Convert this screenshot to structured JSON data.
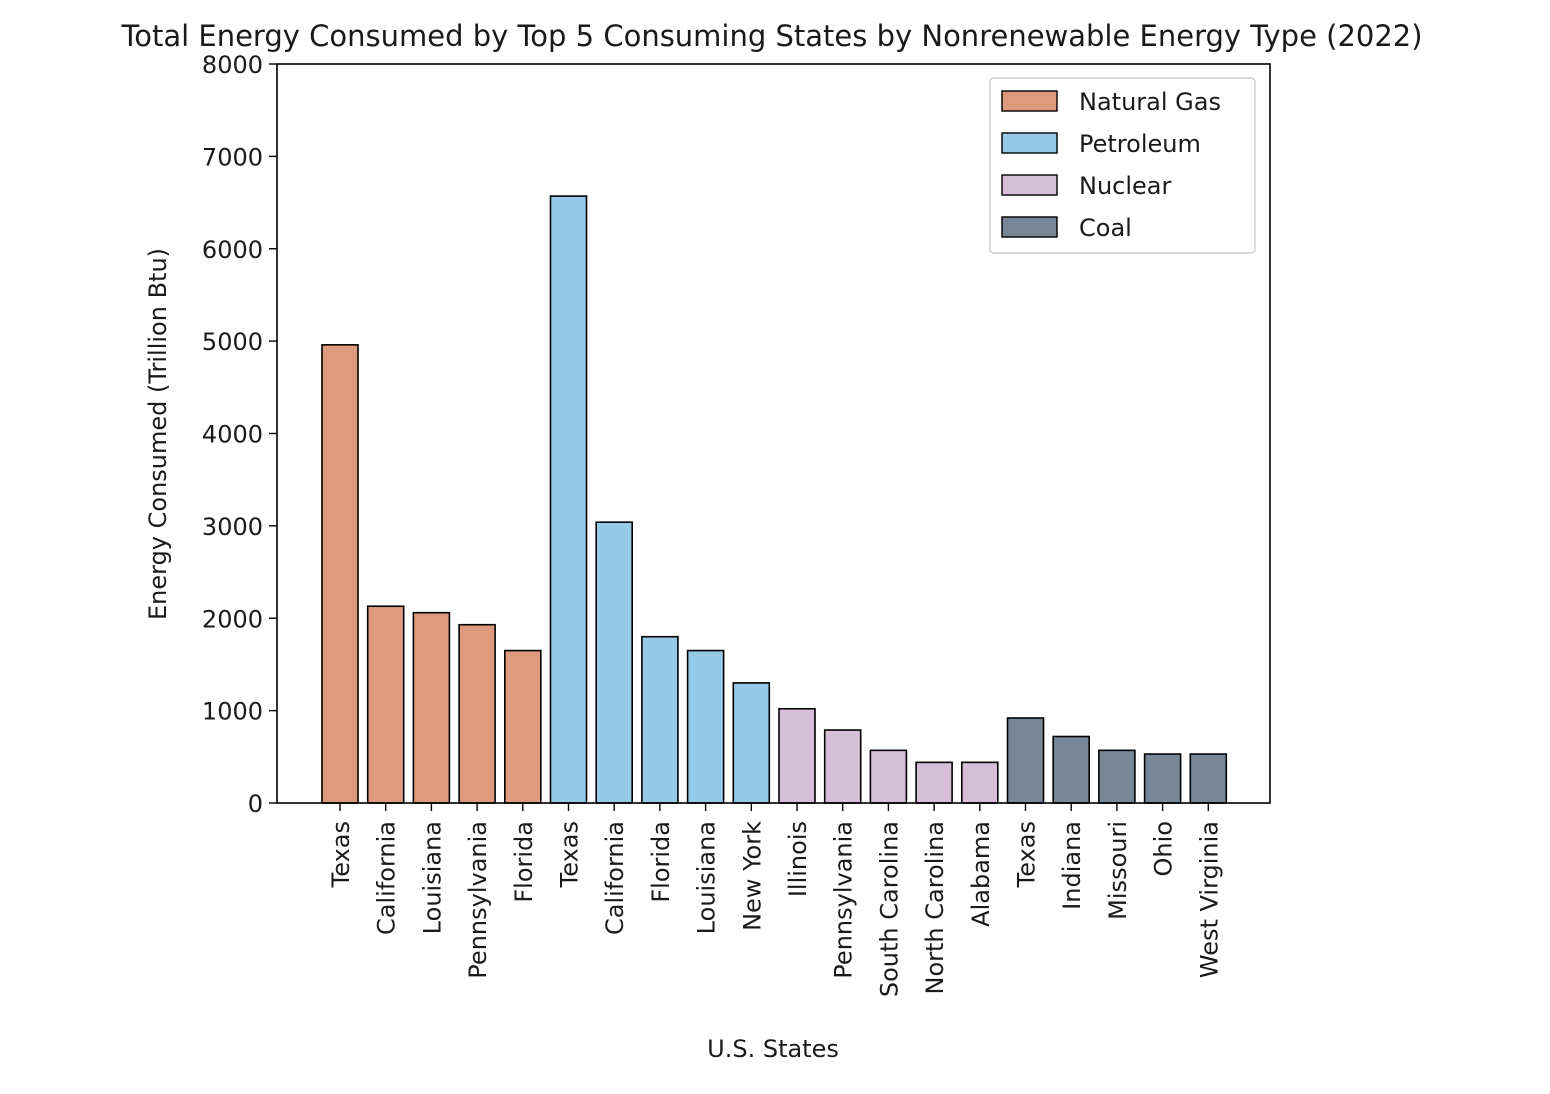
{
  "chart_data": {
    "type": "bar",
    "title": "Total Energy Consumed by Top 5 Consuming States by Nonrenewable Energy Type (2022)",
    "xlabel": "U.S. States",
    "ylabel": "Energy Consumed (Trillion Btu)",
    "ylim": [
      0,
      8000
    ],
    "yticks": [
      "0",
      "1000",
      "2000",
      "3000",
      "4000",
      "5000",
      "6000",
      "7000",
      "8000"
    ],
    "grid": false,
    "legend_position": "top-right",
    "series": [
      {
        "name": "Natural Gas",
        "color": "#DE9A7C",
        "categories": [
          "Texas",
          "California",
          "Louisiana",
          "Pennsylvania",
          "Florida"
        ],
        "values": [
          4960,
          2130,
          2060,
          1930,
          1650
        ]
      },
      {
        "name": "Petroleum",
        "color": "#95CBE7",
        "categories": [
          "Texas",
          "California",
          "Florida",
          "Louisiana",
          "New York"
        ],
        "values": [
          6570,
          3040,
          1800,
          1650,
          1300
        ]
      },
      {
        "name": "Nuclear",
        "color": "#D6BED9",
        "categories": [
          "Illinois",
          "Pennsylvania",
          "South Carolina",
          "North Carolina",
          "Alabama"
        ],
        "values": [
          1020,
          790,
          570,
          440,
          440
        ]
      },
      {
        "name": "Coal",
        "color": "#778797",
        "categories": [
          "Texas",
          "Indiana",
          "Missouri",
          "Ohio",
          "West Virginia"
        ],
        "values": [
          920,
          720,
          570,
          530,
          530
        ]
      }
    ]
  }
}
